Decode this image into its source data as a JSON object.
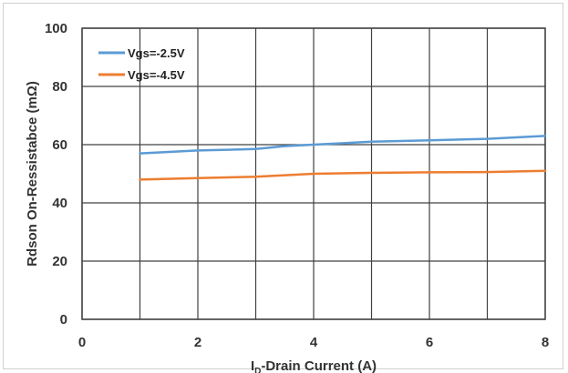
{
  "chart_data": {
    "type": "line",
    "title": "",
    "xlabel": "-Drain Current (A)",
    "xlabel_symbol": "I",
    "xlabel_subscript": "D",
    "ylabel": "Rdson On-Ressistabce (mΩ)",
    "xlim": [
      0,
      8
    ],
    "ylim": [
      0,
      100
    ],
    "xticks": [
      0,
      2,
      4,
      6,
      8
    ],
    "yticks": [
      0,
      20,
      40,
      60,
      80,
      100
    ],
    "grid": true,
    "legend_position": "top-left",
    "series": [
      {
        "name": "Vgs=-2.5V",
        "color": "#5b9bd5",
        "x": [
          1,
          2,
          3,
          3.5,
          4,
          5,
          6,
          7,
          8
        ],
        "y": [
          57,
          58,
          58.5,
          59.5,
          60,
          61,
          61.5,
          62,
          63
        ]
      },
      {
        "name": "Vgs=-4.5V",
        "color": "#ed7d31",
        "x": [
          1,
          2,
          3,
          3.5,
          4,
          5,
          6,
          7,
          8
        ],
        "y": [
          48,
          48.5,
          49,
          49.5,
          50,
          50.3,
          50.5,
          50.6,
          51
        ]
      }
    ]
  }
}
